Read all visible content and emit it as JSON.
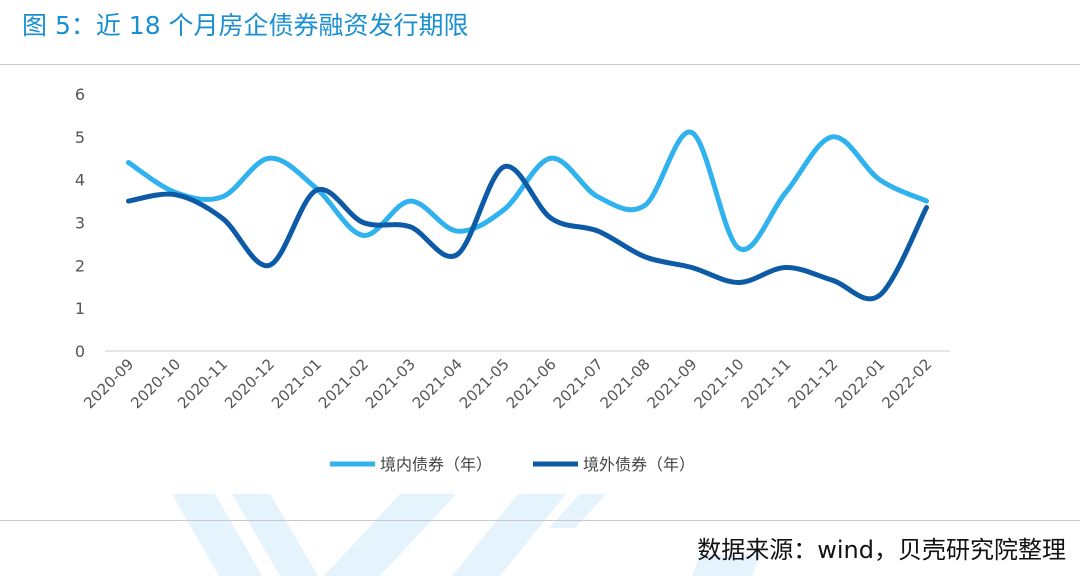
{
  "title": "图 5：近 18 个月房企债券融资发行期限",
  "source_note": "数据来源：wind，贝壳研究院整理",
  "colors": {
    "domestic": "#2fb2ee",
    "overseas": "#0d5aa7",
    "title": "#1a8fd1",
    "watermark": "#e4f3fc"
  },
  "chart_data": {
    "type": "line",
    "smooth": true,
    "categories": [
      "2020-09",
      "2020-10",
      "2020-11",
      "2020-12",
      "2021-01",
      "2021-02",
      "2021-03",
      "2021-04",
      "2021-05",
      "2021-06",
      "2021-07",
      "2021-08",
      "2021-09",
      "2021-10",
      "2021-11",
      "2021-12",
      "2022-01",
      "2022-02"
    ],
    "series": [
      {
        "name": "境内债券（年）",
        "color": "#2fb2ee",
        "values": [
          4.4,
          3.7,
          3.6,
          4.5,
          3.8,
          2.7,
          3.5,
          2.8,
          3.3,
          4.5,
          3.6,
          3.4,
          5.1,
          2.4,
          3.7,
          5.0,
          4.0,
          3.5
        ]
      },
      {
        "name": "境外债券（年）",
        "color": "#0d5aa7",
        "values": [
          3.5,
          3.65,
          3.1,
          2.0,
          3.75,
          3.0,
          2.9,
          2.25,
          4.3,
          3.1,
          2.8,
          2.2,
          1.95,
          1.6,
          1.95,
          1.65,
          1.3,
          3.35
        ]
      }
    ],
    "yticks": [
      0,
      1,
      2,
      3,
      4,
      5,
      6
    ],
    "ylim": [
      0,
      6
    ],
    "grid": false,
    "legend_position": "bottom"
  }
}
